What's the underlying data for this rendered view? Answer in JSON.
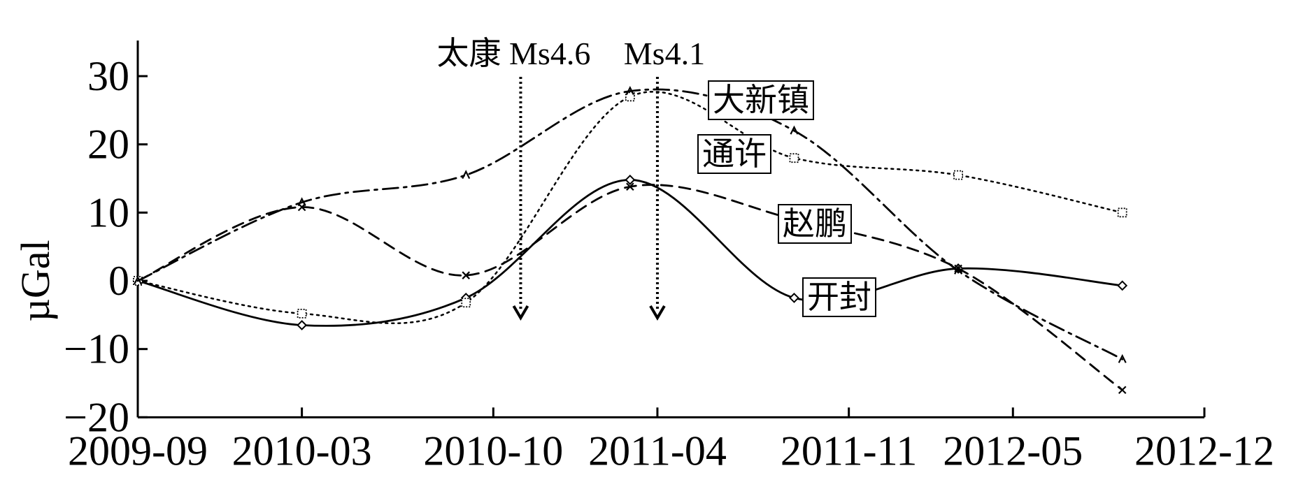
{
  "chart_data": {
    "type": "line",
    "ylabel": "µGal",
    "xlabel": "",
    "ylim": [
      -20,
      35
    ],
    "y_ticks": [
      30,
      20,
      10,
      0,
      -10,
      -20
    ],
    "y_tick_labels": [
      "30",
      "20",
      "10",
      "0",
      "−10",
      "−20"
    ],
    "x_ticks": [
      "2009-09",
      "2010-03",
      "2010-10",
      "2011-04",
      "2011-11",
      "2012-05",
      "2012-12"
    ],
    "x_tick_months": [
      0,
      6,
      13,
      19,
      26,
      32,
      39
    ],
    "grid": false,
    "series": [
      {
        "name": "开封",
        "style": "solid",
        "marker": "diamond",
        "x_months": [
          0,
          6,
          12,
          18,
          24,
          30,
          36
        ],
        "values": [
          0,
          -6.5,
          -2.5,
          14.8,
          -2.5,
          1.8,
          -0.7
        ]
      },
      {
        "name": "赵鹏",
        "style": "dashed",
        "marker": "x",
        "x_months": [
          0,
          6,
          12,
          18,
          24,
          30,
          36
        ],
        "values": [
          0,
          10.8,
          0.8,
          13.8,
          9.0,
          1.8,
          -16.0
        ]
      },
      {
        "name": "通许",
        "style": "dotted",
        "marker": "square",
        "x_months": [
          0,
          6,
          12,
          18,
          24,
          30,
          36
        ],
        "values": [
          0,
          -4.8,
          -3.2,
          27.0,
          18.0,
          15.5,
          10.0
        ]
      },
      {
        "name": "大新镇",
        "style": "dashdot",
        "marker": "triangle",
        "x_months": [
          0,
          6,
          12,
          18,
          24,
          30,
          36
        ],
        "values": [
          0,
          11.5,
          15.5,
          27.8,
          22.0,
          1.5,
          -11.5
        ]
      }
    ],
    "events": [
      {
        "label": "太康 Ms4.6",
        "x_month": 14
      },
      {
        "label": "Ms4.1",
        "x_month": 19
      }
    ]
  },
  "colors": {
    "line": "#000000",
    "background": "#ffffff"
  }
}
